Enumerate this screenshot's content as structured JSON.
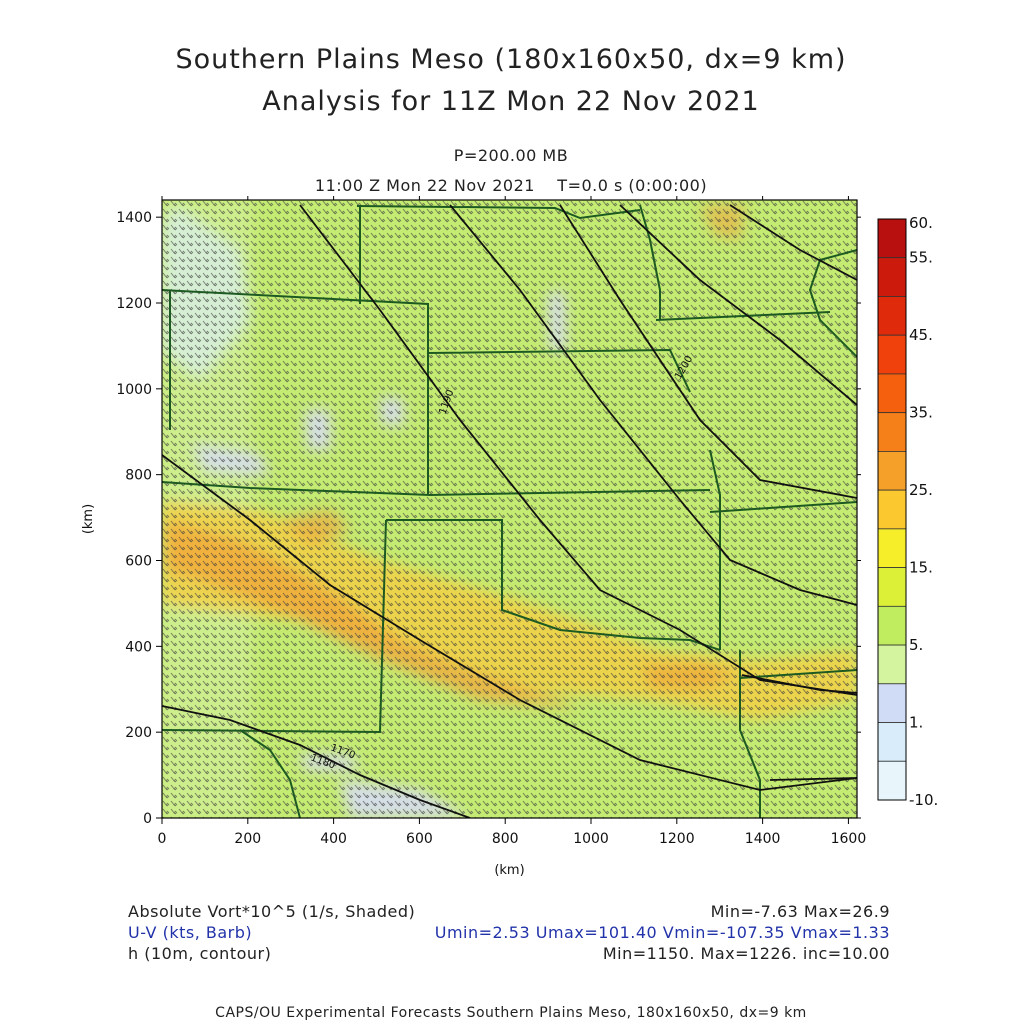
{
  "header": {
    "title_line1": "Southern Plains Meso (180x160x50, dx=9 km)",
    "title_line2": "Analysis for 11Z Mon 22 Nov 2021",
    "level": "P=200.00 MB",
    "valid_time": "11:00 Z Mon 22 Nov 2021    T=0.0 s (0:00:00)"
  },
  "legend_info": {
    "shaded_label": "Absolute Vort*10^5 (1/s, Shaded)",
    "shaded_stats": "Min=-7.63 Max=26.9",
    "barb_label": "U-V (kts, Barb)",
    "barb_stats": "Umin=2.53 Umax=101.40 Vmin=-107.35 Vmax=1.33",
    "contour_label": "h (10m, contour)",
    "contour_stats": "Min=1150. Max=1226. inc=10.00"
  },
  "footer": "CAPS/OU Experimental Forecasts  Southern Plains Meso, 180x160x50, dx=9 km",
  "chart_data": {
    "type": "heatmap",
    "xlabel": "(km)",
    "ylabel": "(km)",
    "xlim": [
      0,
      1620
    ],
    "ylim": [
      0,
      1440
    ],
    "x_ticks": [
      "0",
      "200",
      "400",
      "600",
      "800",
      "1000",
      "1200",
      "1400",
      "1600"
    ],
    "y_ticks": [
      "0",
      "200",
      "400",
      "600",
      "800",
      "1000",
      "1200",
      "1400"
    ],
    "colorbar": {
      "labels": [
        "60.",
        "55.",
        "45.",
        "35.",
        "25.",
        "15.",
        "5.",
        "1.",
        "-10."
      ],
      "levels": [
        60,
        55,
        50,
        45,
        40,
        35,
        30,
        25,
        20,
        15,
        10,
        5,
        1,
        -1,
        -5,
        -10
      ],
      "colors": [
        "#b8100e",
        "#cc1a0c",
        "#e02a0c",
        "#f0400c",
        "#f4600e",
        "#f5801a",
        "#f5a028",
        "#fbc830",
        "#f7ee2a",
        "#dcf038",
        "#c0ec60",
        "#d4f4a0",
        "#d0dcf6",
        "#d8ecfa",
        "#e8f6fc"
      ]
    },
    "contour_labels": [
      "1190",
      "1200",
      "1170",
      "1180"
    ],
    "color_scale": {
      "background": "#c4eb72",
      "high_band": "#f2d045",
      "peak": "#f0a63a",
      "low_patch": "#d6dcf2",
      "barb": "#3a3a3a",
      "border": "#1d5a22",
      "contour": "#111111"
    }
  }
}
